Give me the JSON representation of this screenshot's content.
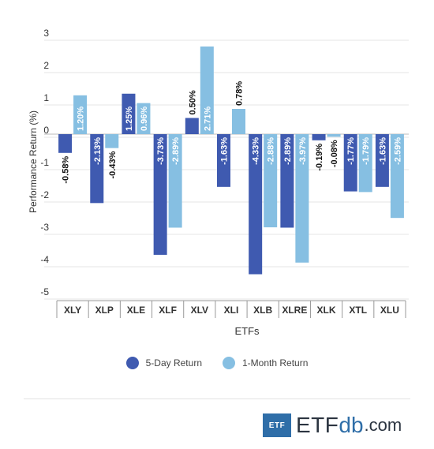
{
  "chart_data": {
    "type": "bar",
    "xlabel": "ETFs",
    "ylabel": "Performance Return (%)",
    "categories": [
      "XLY",
      "XLP",
      "XLE",
      "XLF",
      "XLV",
      "XLI",
      "XLB",
      "XLRE",
      "XLK",
      "XTL",
      "XLU"
    ],
    "series": [
      {
        "name": "5-Day Return",
        "values": [
          -0.58,
          -2.13,
          1.25,
          -3.73,
          0.5,
          -1.63,
          -4.33,
          -2.89,
          -0.19,
          -1.77,
          -1.63
        ],
        "labels": [
          "-0.58%",
          "-2.13%",
          "1.25%",
          "-3.73%",
          "0.50%",
          "-1.63%",
          "-4.33%",
          "-2.89%",
          "-0.19%",
          "-1.77%",
          "-1.63%"
        ],
        "color": "#3f5ab0"
      },
      {
        "name": "1-Month Return",
        "values": [
          1.2,
          -0.43,
          0.96,
          -2.89,
          2.71,
          0.78,
          -2.88,
          -3.97,
          -0.08,
          -1.79,
          -2.59
        ],
        "labels": [
          "1.20%",
          "-0.43%",
          "0.96%",
          "-2.89%",
          "2.71%",
          "0.78%",
          "-2.88%",
          "-3.97%",
          "-0.08%",
          "-1.79%",
          "-2.59%"
        ],
        "color": "#86bfe2"
      }
    ],
    "yticks": [
      3,
      2,
      1,
      0,
      -1,
      -2,
      -3,
      -4,
      -5
    ],
    "ytick_labels": [
      "3",
      "2",
      "1",
      "0",
      "-1",
      "-2",
      "-3",
      "-4",
      "-5"
    ],
    "ylim": [
      -5,
      3
    ],
    "grid": true,
    "legend_position": "bottom"
  },
  "brand": {
    "box_text": "ETF",
    "main": "ETF",
    "db": "db",
    "tld": ".com"
  }
}
